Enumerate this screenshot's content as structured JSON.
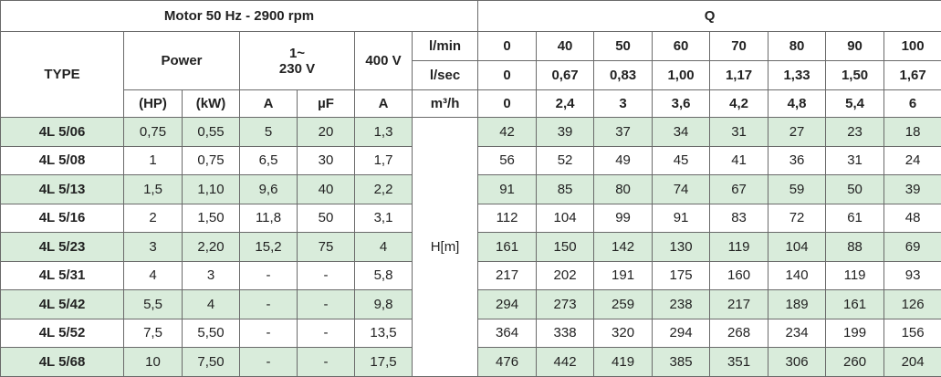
{
  "header": {
    "motor": "Motor 50 Hz - 2900 rpm",
    "q": "Q",
    "type": "TYPE",
    "power": "Power",
    "single_phase": [
      "1~",
      "230 V"
    ],
    "three_phase": "400 V",
    "units": [
      "(HP)",
      "(kW)",
      "A",
      "µF",
      "A"
    ],
    "flow_units": [
      "l/min",
      "l/sec",
      "m³/h"
    ],
    "flow": [
      [
        "0",
        "40",
        "50",
        "60",
        "70",
        "80",
        "90",
        "100"
      ],
      [
        "0",
        "0,67",
        "0,83",
        "1,00",
        "1,17",
        "1,33",
        "1,50",
        "1,67"
      ],
      [
        "0",
        "2,4",
        "3",
        "3,6",
        "4,2",
        "4,8",
        "5,4",
        "6"
      ]
    ],
    "head_label": "H[m]"
  },
  "rows": [
    [
      "4L 5/06",
      "0,75",
      "0,55",
      "5",
      "20",
      "1,3"
    ],
    [
      "4L 5/08",
      "1",
      "0,75",
      "6,5",
      "30",
      "1,7"
    ],
    [
      "4L 5/13",
      "1,5",
      "1,10",
      "9,6",
      "40",
      "2,2"
    ],
    [
      "4L 5/16",
      "2",
      "1,50",
      "11,8",
      "50",
      "3,1"
    ],
    [
      "4L 5/23",
      "3",
      "2,20",
      "15,2",
      "75",
      "4"
    ],
    [
      "4L 5/31",
      "4",
      "3",
      "-",
      "-",
      "5,8"
    ],
    [
      "4L 5/42",
      "5,5",
      "4",
      "-",
      "-",
      "9,8"
    ],
    [
      "4L 5/52",
      "7,5",
      "5,50",
      "-",
      "-",
      "13,5"
    ],
    [
      "4L 5/68",
      "10",
      "7,50",
      "-",
      "-",
      "17,5"
    ]
  ],
  "heads": [
    [
      "42",
      "39",
      "37",
      "34",
      "31",
      "27",
      "23",
      "18"
    ],
    [
      "56",
      "52",
      "49",
      "45",
      "41",
      "36",
      "31",
      "24"
    ],
    [
      "91",
      "85",
      "80",
      "74",
      "67",
      "59",
      "50",
      "39"
    ],
    [
      "112",
      "104",
      "99",
      "91",
      "83",
      "72",
      "61",
      "48"
    ],
    [
      "161",
      "150",
      "142",
      "130",
      "119",
      "104",
      "88",
      "69"
    ],
    [
      "217",
      "202",
      "191",
      "175",
      "160",
      "140",
      "119",
      "93"
    ],
    [
      "294",
      "273",
      "259",
      "238",
      "217",
      "189",
      "161",
      "126"
    ],
    [
      "364",
      "338",
      "320",
      "294",
      "268",
      "234",
      "199",
      "156"
    ],
    [
      "476",
      "442",
      "419",
      "385",
      "351",
      "306",
      "260",
      "204"
    ]
  ]
}
